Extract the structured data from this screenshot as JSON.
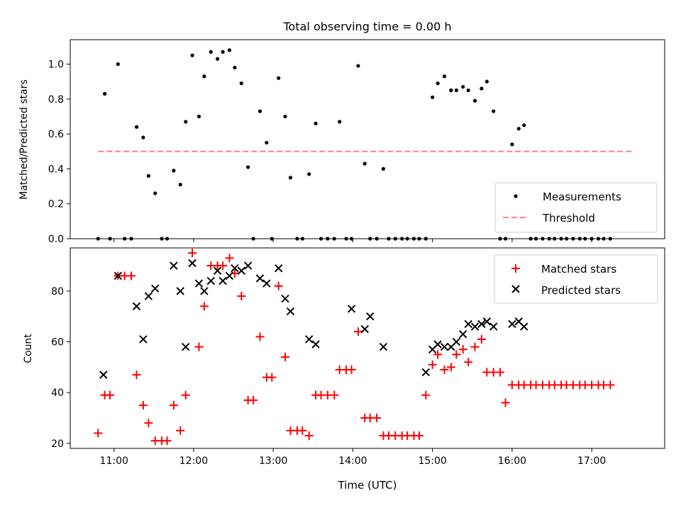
{
  "title": "Total observing time = 0.00 h",
  "colors": {
    "measurement": "#000000",
    "threshold": "#ff8080",
    "matched": "#ff0000",
    "predicted": "#000000"
  },
  "chart_data": [
    {
      "type": "scatter",
      "ylabel": "Matched/Predicted stars",
      "xlim": [
        "10:27",
        "17:55"
      ],
      "ylim": [
        0,
        1.14
      ],
      "yticks": [
        0.0,
        0.2,
        0.4,
        0.6,
        0.8,
        1.0
      ],
      "grid": false,
      "legend_position": "lower-right",
      "series": [
        {
          "name": "Measurements",
          "marker": "dot",
          "points": [
            [
              "10:48",
              0.0
            ],
            [
              "10:53",
              0.83
            ],
            [
              "10:57",
              0.0
            ],
            [
              "11:03",
              1.0
            ],
            [
              "11:08",
              0.0
            ],
            [
              "11:13",
              0.0
            ],
            [
              "11:17",
              0.64
            ],
            [
              "11:22",
              0.58
            ],
            [
              "11:26",
              0.36
            ],
            [
              "11:31",
              0.26
            ],
            [
              "11:36",
              0.0
            ],
            [
              "11:40",
              0.0
            ],
            [
              "11:45",
              0.39
            ],
            [
              "11:50",
              0.31
            ],
            [
              "11:54",
              0.67
            ],
            [
              "11:59",
              1.05
            ],
            [
              "12:04",
              0.7
            ],
            [
              "12:08",
              0.93
            ],
            [
              "12:13",
              1.07
            ],
            [
              "12:18",
              1.03
            ],
            [
              "12:22",
              1.07
            ],
            [
              "12:27",
              1.08
            ],
            [
              "12:31",
              0.98
            ],
            [
              "12:36",
              0.89
            ],
            [
              "12:41",
              0.41
            ],
            [
              "12:45",
              0.0
            ],
            [
              "12:50",
              0.73
            ],
            [
              "12:55",
              0.55
            ],
            [
              "12:59",
              0.0
            ],
            [
              "13:04",
              0.92
            ],
            [
              "13:09",
              0.7
            ],
            [
              "13:13",
              0.35
            ],
            [
              "13:18",
              0.0
            ],
            [
              "13:22",
              0.0
            ],
            [
              "13:27",
              0.37
            ],
            [
              "13:32",
              0.66
            ],
            [
              "13:36",
              0.0
            ],
            [
              "13:41",
              0.0
            ],
            [
              "13:46",
              0.0
            ],
            [
              "13:50",
              0.67
            ],
            [
              "13:55",
              0.0
            ],
            [
              "13:59",
              0.0
            ],
            [
              "14:04",
              0.99
            ],
            [
              "14:09",
              0.43
            ],
            [
              "14:13",
              0.0
            ],
            [
              "14:18",
              0.0
            ],
            [
              "14:23",
              0.4
            ],
            [
              "14:27",
              0.0
            ],
            [
              "14:32",
              0.0
            ],
            [
              "14:37",
              0.0
            ],
            [
              "14:41",
              0.0
            ],
            [
              "14:46",
              0.0
            ],
            [
              "14:50",
              0.0
            ],
            [
              "14:55",
              0.0
            ],
            [
              "15:00",
              0.81
            ],
            [
              "15:04",
              0.89
            ],
            [
              "15:09",
              0.93
            ],
            [
              "15:14",
              0.85
            ],
            [
              "15:18",
              0.85
            ],
            [
              "15:23",
              0.87
            ],
            [
              "15:27",
              0.85
            ],
            [
              "15:32",
              0.79
            ],
            [
              "15:37",
              0.86
            ],
            [
              "15:41",
              0.9
            ],
            [
              "15:46",
              0.73
            ],
            [
              "15:51",
              0.0
            ],
            [
              "15:55",
              0.0
            ],
            [
              "16:00",
              0.54
            ],
            [
              "16:05",
              0.63
            ],
            [
              "16:09",
              0.65
            ],
            [
              "16:14",
              0.0
            ],
            [
              "16:18",
              0.0
            ],
            [
              "16:23",
              0.0
            ],
            [
              "16:28",
              0.0
            ],
            [
              "16:32",
              0.0
            ],
            [
              "16:37",
              0.0
            ],
            [
              "16:41",
              0.0
            ],
            [
              "16:46",
              0.0
            ],
            [
              "16:51",
              0.0
            ],
            [
              "16:55",
              0.0
            ],
            [
              "17:00",
              0.0
            ],
            [
              "17:05",
              0.0
            ],
            [
              "17:09",
              0.0
            ],
            [
              "17:14",
              0.0
            ]
          ]
        },
        {
          "name": "Threshold",
          "type": "line",
          "style": "dashed",
          "x": [
            "10:48",
            "17:30"
          ],
          "y": [
            0.5,
            0.5
          ]
        }
      ]
    },
    {
      "type": "scatter",
      "xlabel": "Time (UTC)",
      "ylabel": "Count",
      "xlim": [
        "10:27",
        "17:55"
      ],
      "ylim": [
        18,
        97
      ],
      "yticks": [
        20,
        40,
        60,
        80
      ],
      "xticks": [
        "11:00",
        "12:00",
        "13:00",
        "14:00",
        "15:00",
        "16:00",
        "17:00"
      ],
      "grid": false,
      "legend_position": "upper-right",
      "series": [
        {
          "name": "Matched stars",
          "marker": "plus",
          "points": [
            [
              "10:48",
              24
            ],
            [
              "10:53",
              39
            ],
            [
              "10:57",
              39
            ],
            [
              "11:03",
              86
            ],
            [
              "11:08",
              86
            ],
            [
              "11:13",
              86
            ],
            [
              "11:17",
              47
            ],
            [
              "11:22",
              35
            ],
            [
              "11:26",
              28
            ],
            [
              "11:31",
              21
            ],
            [
              "11:36",
              21
            ],
            [
              "11:40",
              21
            ],
            [
              "11:45",
              35
            ],
            [
              "11:50",
              25
            ],
            [
              "11:54",
              39
            ],
            [
              "11:59",
              95
            ],
            [
              "12:04",
              58
            ],
            [
              "12:08",
              74
            ],
            [
              "12:13",
              90
            ],
            [
              "12:18",
              90
            ],
            [
              "12:22",
              90
            ],
            [
              "12:27",
              93
            ],
            [
              "12:31",
              87
            ],
            [
              "12:36",
              78
            ],
            [
              "12:41",
              37
            ],
            [
              "12:45",
              37
            ],
            [
              "12:50",
              62
            ],
            [
              "12:55",
              46
            ],
            [
              "12:59",
              46
            ],
            [
              "13:04",
              82
            ],
            [
              "13:09",
              54
            ],
            [
              "13:13",
              25
            ],
            [
              "13:18",
              25
            ],
            [
              "13:22",
              25
            ],
            [
              "13:27",
              23
            ],
            [
              "13:32",
              39
            ],
            [
              "13:36",
              39
            ],
            [
              "13:41",
              39
            ],
            [
              "13:46",
              39
            ],
            [
              "13:50",
              49
            ],
            [
              "13:55",
              49
            ],
            [
              "13:59",
              49
            ],
            [
              "14:04",
              64
            ],
            [
              "14:09",
              30
            ],
            [
              "14:13",
              30
            ],
            [
              "14:18",
              30
            ],
            [
              "14:23",
              23
            ],
            [
              "14:27",
              23
            ],
            [
              "14:32",
              23
            ],
            [
              "14:37",
              23
            ],
            [
              "14:41",
              23
            ],
            [
              "14:46",
              23
            ],
            [
              "14:50",
              23
            ],
            [
              "14:55",
              39
            ],
            [
              "15:00",
              51
            ],
            [
              "15:04",
              55
            ],
            [
              "15:09",
              49
            ],
            [
              "15:14",
              50
            ],
            [
              "15:18",
              55
            ],
            [
              "15:23",
              57
            ],
            [
              "15:27",
              52
            ],
            [
              "15:32",
              58
            ],
            [
              "15:37",
              61
            ],
            [
              "15:41",
              48
            ],
            [
              "15:46",
              48
            ],
            [
              "15:51",
              48
            ],
            [
              "15:55",
              36
            ],
            [
              "16:00",
              43
            ],
            [
              "16:05",
              43
            ],
            [
              "16:09",
              43
            ],
            [
              "16:14",
              43
            ],
            [
              "16:18",
              43
            ],
            [
              "16:23",
              43
            ],
            [
              "16:28",
              43
            ],
            [
              "16:32",
              43
            ],
            [
              "16:37",
              43
            ],
            [
              "16:41",
              43
            ],
            [
              "16:46",
              43
            ],
            [
              "16:51",
              43
            ],
            [
              "16:55",
              43
            ],
            [
              "17:00",
              43
            ],
            [
              "17:05",
              43
            ],
            [
              "17:09",
              43
            ],
            [
              "17:14",
              43
            ]
          ]
        },
        {
          "name": "Predicted stars",
          "marker": "x",
          "points": [
            [
              "10:52",
              47
            ],
            [
              "11:03",
              86
            ],
            [
              "11:17",
              74
            ],
            [
              "11:22",
              61
            ],
            [
              "11:26",
              78
            ],
            [
              "11:31",
              81
            ],
            [
              "11:45",
              90
            ],
            [
              "11:50",
              80
            ],
            [
              "11:54",
              58
            ],
            [
              "11:59",
              91
            ],
            [
              "12:04",
              83
            ],
            [
              "12:08",
              80
            ],
            [
              "12:13",
              84
            ],
            [
              "12:18",
              88
            ],
            [
              "12:22",
              84
            ],
            [
              "12:27",
              86
            ],
            [
              "12:31",
              89
            ],
            [
              "12:36",
              88
            ],
            [
              "12:41",
              90
            ],
            [
              "12:50",
              85
            ],
            [
              "12:55",
              83
            ],
            [
              "13:04",
              89
            ],
            [
              "13:09",
              77
            ],
            [
              "13:13",
              72
            ],
            [
              "13:27",
              61
            ],
            [
              "13:32",
              59
            ],
            [
              "13:59",
              73
            ],
            [
              "14:09",
              65
            ],
            [
              "14:13",
              70
            ],
            [
              "14:23",
              58
            ],
            [
              "14:55",
              48
            ],
            [
              "15:00",
              57
            ],
            [
              "15:04",
              59
            ],
            [
              "15:09",
              58
            ],
            [
              "15:14",
              58
            ],
            [
              "15:18",
              60
            ],
            [
              "15:23",
              63
            ],
            [
              "15:27",
              67
            ],
            [
              "15:32",
              66
            ],
            [
              "15:37",
              67
            ],
            [
              "15:41",
              68
            ],
            [
              "15:46",
              66
            ],
            [
              "16:00",
              67
            ],
            [
              "16:05",
              68
            ],
            [
              "16:09",
              66
            ]
          ]
        }
      ]
    }
  ]
}
